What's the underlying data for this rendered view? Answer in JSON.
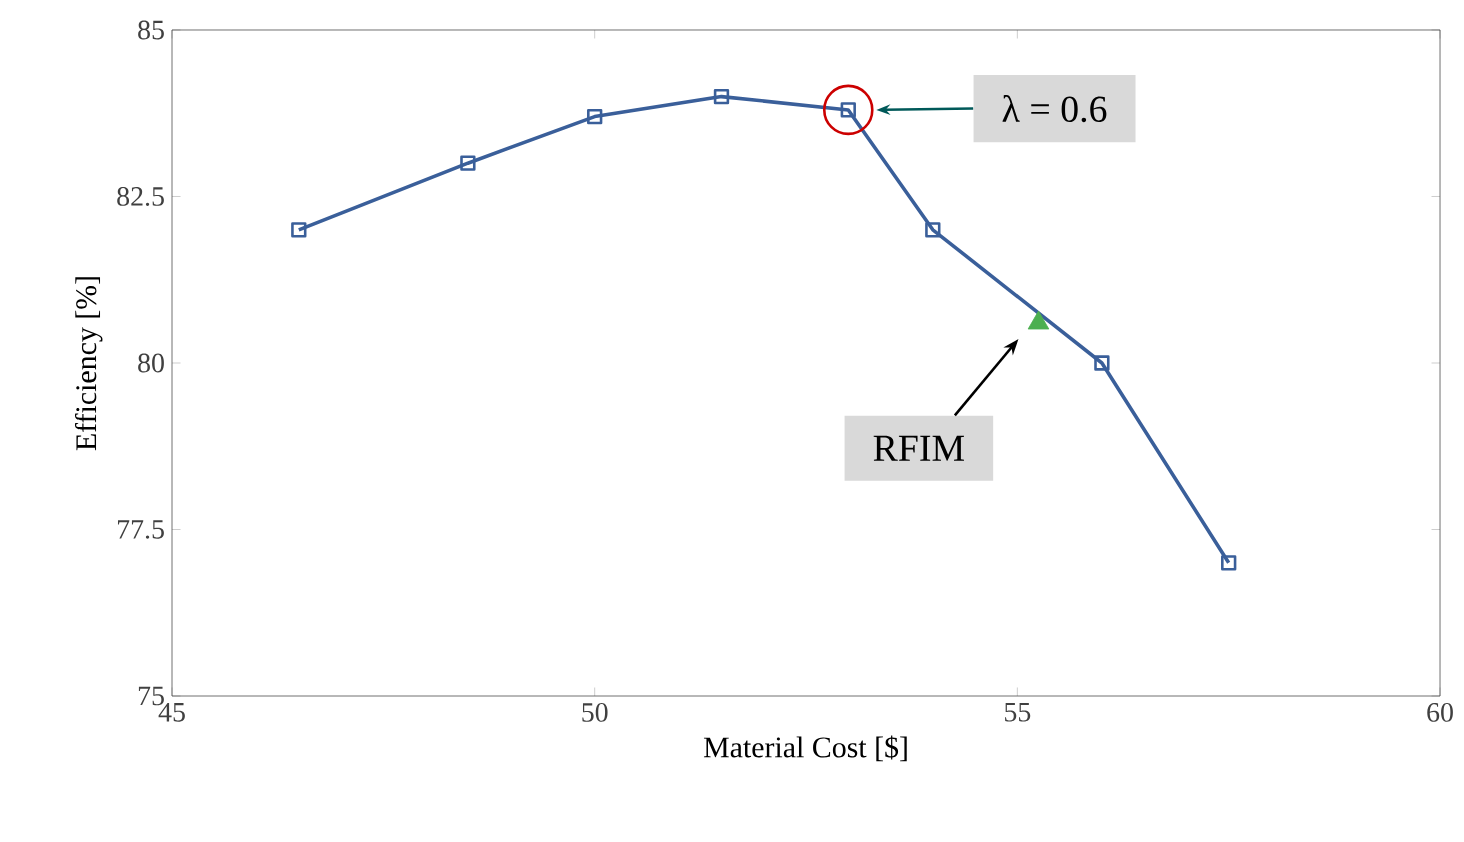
{
  "chart_data": {
    "type": "line",
    "xlabel": "Material Cost [$]",
    "ylabel": "Efficiency [%]",
    "xlim": [
      45,
      60
    ],
    "xticks": [
      45,
      50,
      55,
      60
    ],
    "ylim": [
      75,
      85
    ],
    "yticks": [
      75,
      77.5,
      80,
      82.5,
      85
    ],
    "grid": false,
    "series": [
      {
        "color": "#3a5f9a",
        "marker": "square",
        "line_style": "solid",
        "x": [
          46.5,
          48.5,
          50,
          51.5,
          53,
          54,
          56,
          57.5
        ],
        "values": [
          82,
          83,
          83.7,
          84,
          83.8,
          82,
          80,
          77
        ]
      },
      {
        "type": "scatter",
        "color": "#4caf50",
        "marker": "triangle",
        "x": [
          55.25
        ],
        "values": [
          80.6
        ]
      }
    ],
    "annotations": [
      "λ = 0.6",
      "RFIM"
    ]
  }
}
